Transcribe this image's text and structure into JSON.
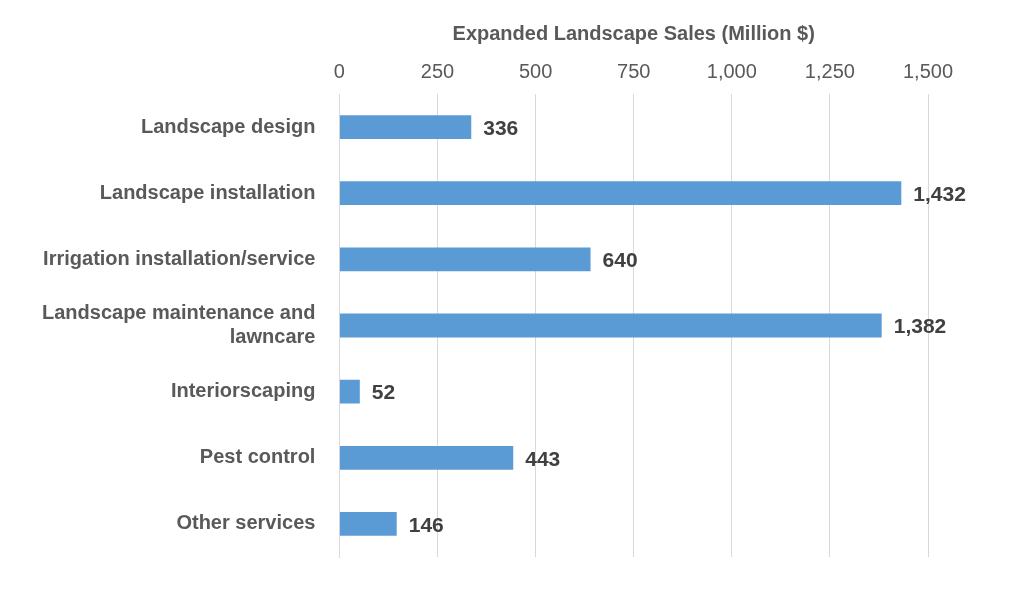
{
  "chart_data": {
    "type": "bar",
    "orientation": "horizontal",
    "xlabel": "Expanded Landscape Sales (Million $)",
    "categories": [
      "Landscape design",
      "Landscape installation",
      "Irrigation installation/service",
      "Landscape maintenance and lawncare",
      "Interiorscaping",
      "Pest control",
      "Other services"
    ],
    "series": [
      {
        "color": "#5b9bd5",
        "values": [
          336,
          1432,
          640,
          1382,
          52,
          443,
          146
        ],
        "value_labels": [
          "336",
          "1,432",
          "640",
          "1,382",
          "52",
          "443",
          "146"
        ]
      }
    ],
    "xlim": [
      0,
      1500
    ],
    "xticks": [
      0,
      250,
      500,
      750,
      {
        "value": 1000,
        "label": "1,000"
      },
      {
        "value": 1250,
        "label": "1,250"
      },
      {
        "value": 1500,
        "label": "1,500"
      }
    ],
    "grid": "x",
    "legend": false
  }
}
